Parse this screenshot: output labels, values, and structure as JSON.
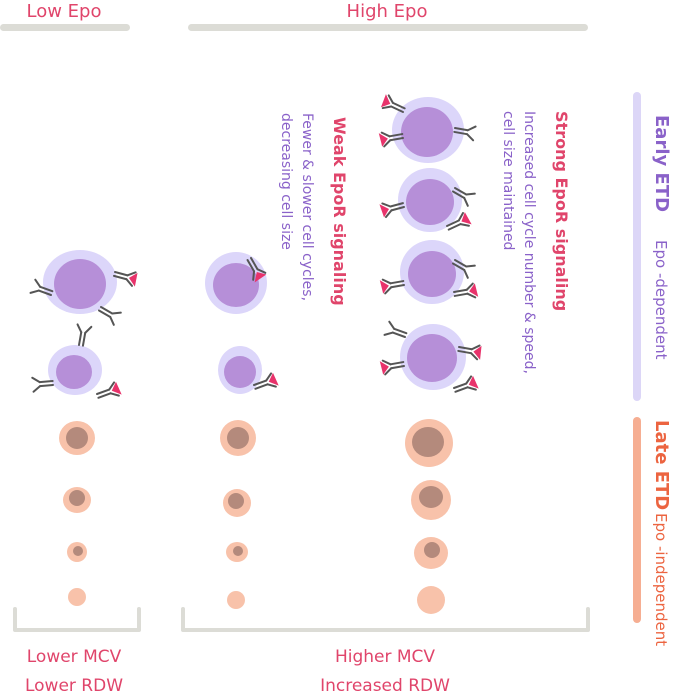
{
  "headers": {
    "low_epo": "Low Epo",
    "high_epo": "High Epo"
  },
  "annotations": {
    "weak": {
      "title": "Weak EpoR signaling",
      "line1": "Fewer & slower cell cycles,",
      "line2": "decreasing cell size"
    },
    "strong": {
      "title": "Strong EpoR signaling",
      "line1": "Increased cell cycle number & speed,",
      "line2": "cell size maintained"
    }
  },
  "side_labels": {
    "early_title": "Early ETD",
    "early_sub": "Epo -dependent",
    "late_title": "Late ETD",
    "late_sub": "Epo -independent"
  },
  "bottom": {
    "low_line1": "Lower MCV",
    "low_line2": "Lower RDW",
    "high_line1": "Higher MCV",
    "high_line2": "Increased RDW"
  },
  "colors": {
    "header_text": "#e0456b",
    "bar_gray": "#dcdcd6",
    "early_purple": "#8a62c9",
    "early_bar": "#dcd6f7",
    "late_orange": "#ec6440",
    "late_bar": "#f6ae92",
    "receptor_pink": "#e8336b",
    "cell_halo": "#dcd6fa",
    "cell_body": "#b68fd8",
    "late_halo": "#f8c2aa",
    "late_nucleus": "#b48a7c"
  }
}
